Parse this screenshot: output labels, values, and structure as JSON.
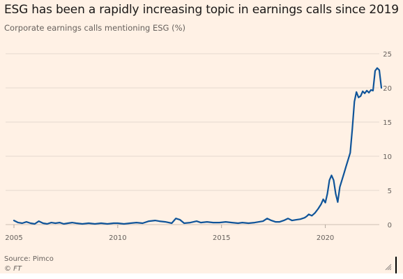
{
  "header": {
    "title": "ESG has been a rapidly increasing topic in earnings calls since 2019",
    "subtitle": "Corporate earnings calls mentioning ESG (%)"
  },
  "footer": {
    "source": "Source: Pimco",
    "credit": "© FT"
  },
  "colors": {
    "background": "#fff1e5",
    "line": "#0f5499",
    "grid": "#e6d9ce",
    "tick_text": "#66605c"
  },
  "chart_data": {
    "type": "line",
    "title": "ESG has been a rapidly increasing topic in earnings calls since 2019",
    "subtitle": "Corporate earnings calls mentioning ESG (%)",
    "xlabel": "",
    "ylabel": "",
    "xlim": [
      2005,
      2022.5
    ],
    "ylim": [
      0,
      25
    ],
    "x_ticks": [
      2005,
      2010,
      2015,
      2020
    ],
    "y_ticks": [
      0,
      5,
      10,
      15,
      20,
      25
    ],
    "grid": true,
    "y_axis_side": "right",
    "series": [
      {
        "values": [
          [
            2005.0,
            0.6
          ],
          [
            2005.2,
            0.3
          ],
          [
            2005.4,
            0.2
          ],
          [
            2005.6,
            0.4
          ],
          [
            2005.8,
            0.2
          ],
          [
            2006.0,
            0.1
          ],
          [
            2006.2,
            0.5
          ],
          [
            2006.4,
            0.2
          ],
          [
            2006.6,
            0.1
          ],
          [
            2006.8,
            0.3
          ],
          [
            2007.0,
            0.2
          ],
          [
            2007.2,
            0.3
          ],
          [
            2007.4,
            0.1
          ],
          [
            2007.6,
            0.2
          ],
          [
            2007.8,
            0.3
          ],
          [
            2008.0,
            0.2
          ],
          [
            2008.3,
            0.1
          ],
          [
            2008.6,
            0.2
          ],
          [
            2008.9,
            0.1
          ],
          [
            2009.2,
            0.2
          ],
          [
            2009.5,
            0.1
          ],
          [
            2009.8,
            0.2
          ],
          [
            2010.0,
            0.2
          ],
          [
            2010.3,
            0.1
          ],
          [
            2010.6,
            0.2
          ],
          [
            2010.9,
            0.3
          ],
          [
            2011.2,
            0.2
          ],
          [
            2011.5,
            0.5
          ],
          [
            2011.8,
            0.6
          ],
          [
            2012.0,
            0.5
          ],
          [
            2012.3,
            0.4
          ],
          [
            2012.6,
            0.2
          ],
          [
            2012.8,
            0.9
          ],
          [
            2013.0,
            0.7
          ],
          [
            2013.2,
            0.2
          ],
          [
            2013.5,
            0.3
          ],
          [
            2013.8,
            0.5
          ],
          [
            2014.0,
            0.3
          ],
          [
            2014.3,
            0.4
          ],
          [
            2014.6,
            0.3
          ],
          [
            2014.9,
            0.3
          ],
          [
            2015.2,
            0.4
          ],
          [
            2015.5,
            0.3
          ],
          [
            2015.8,
            0.2
          ],
          [
            2016.0,
            0.3
          ],
          [
            2016.3,
            0.2
          ],
          [
            2016.6,
            0.3
          ],
          [
            2016.8,
            0.4
          ],
          [
            2017.0,
            0.5
          ],
          [
            2017.2,
            0.9
          ],
          [
            2017.4,
            0.6
          ],
          [
            2017.6,
            0.4
          ],
          [
            2017.8,
            0.4
          ],
          [
            2018.0,
            0.6
          ],
          [
            2018.2,
            0.9
          ],
          [
            2018.4,
            0.6
          ],
          [
            2018.6,
            0.7
          ],
          [
            2018.8,
            0.8
          ],
          [
            2019.0,
            1.0
          ],
          [
            2019.1,
            1.2
          ],
          [
            2019.2,
            1.5
          ],
          [
            2019.35,
            1.3
          ],
          [
            2019.5,
            1.7
          ],
          [
            2019.65,
            2.3
          ],
          [
            2019.8,
            3.0
          ],
          [
            2019.9,
            3.7
          ],
          [
            2020.0,
            3.2
          ],
          [
            2020.1,
            4.5
          ],
          [
            2020.2,
            6.5
          ],
          [
            2020.3,
            7.2
          ],
          [
            2020.4,
            6.5
          ],
          [
            2020.5,
            4.5
          ],
          [
            2020.6,
            3.3
          ],
          [
            2020.7,
            5.5
          ],
          [
            2020.8,
            6.5
          ],
          [
            2020.9,
            7.5
          ],
          [
            2021.0,
            8.5
          ],
          [
            2021.1,
            9.5
          ],
          [
            2021.2,
            10.5
          ],
          [
            2021.3,
            14.0
          ],
          [
            2021.4,
            18.0
          ],
          [
            2021.5,
            19.4
          ],
          [
            2021.6,
            18.6
          ],
          [
            2021.7,
            18.8
          ],
          [
            2021.8,
            19.5
          ],
          [
            2021.9,
            19.2
          ],
          [
            2022.0,
            19.6
          ],
          [
            2022.1,
            19.3
          ],
          [
            2022.2,
            19.7
          ],
          [
            2022.3,
            19.6
          ],
          [
            2022.4,
            22.5
          ],
          [
            2022.5,
            22.9
          ],
          [
            2022.6,
            22.6
          ],
          [
            2022.7,
            20.0
          ]
        ]
      }
    ]
  }
}
